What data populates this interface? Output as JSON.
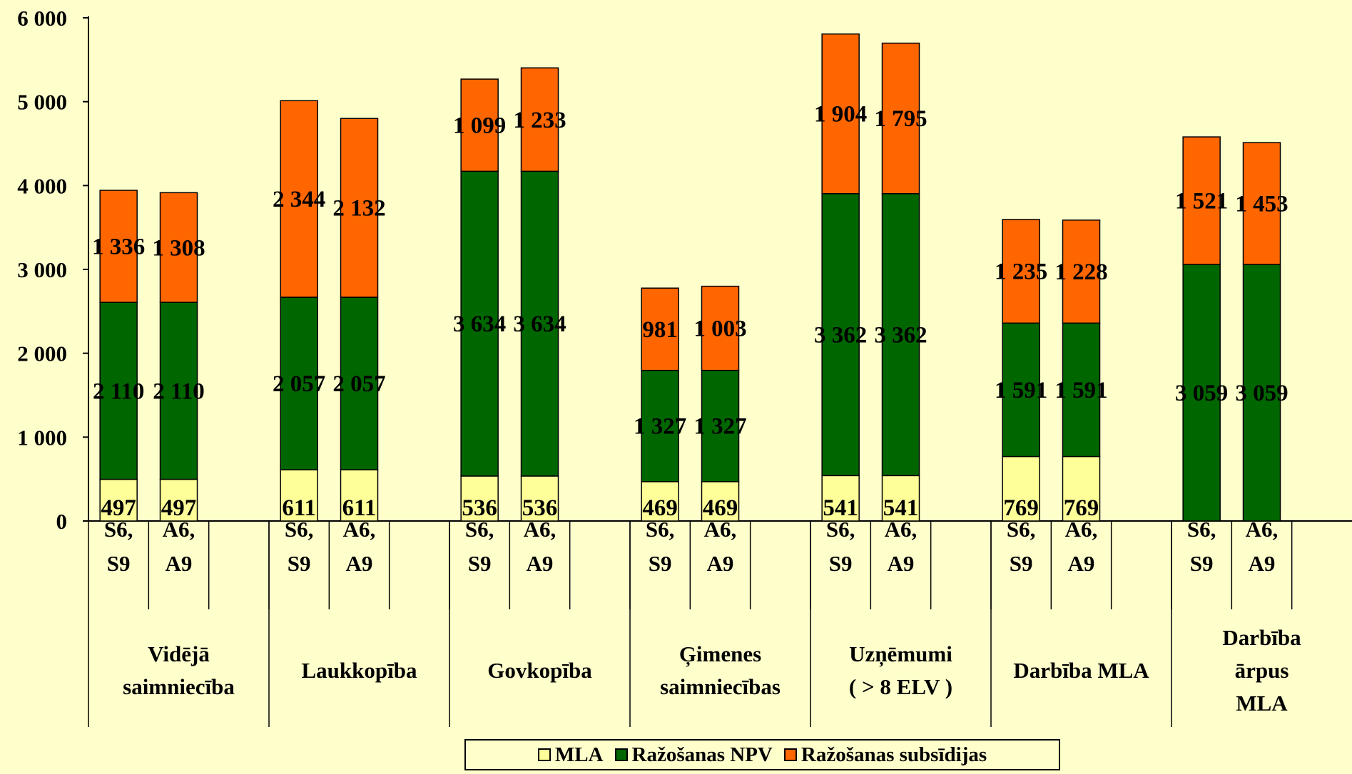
{
  "chart_data": {
    "type": "bar",
    "stacked": true,
    "y_ticks": [
      "0",
      "1 000",
      "2 000",
      "3 000",
      "4 000",
      "5 000",
      "6 000"
    ],
    "ylim": [
      0,
      6000
    ],
    "grid": false,
    "legend_position": "bottom",
    "groups": [
      {
        "label": "Vidējā saimniecība",
        "label_lines": [
          "Vidējā",
          "saimniecība"
        ]
      },
      {
        "label": "Laukkopība",
        "label_lines": [
          "Laukkopība"
        ]
      },
      {
        "label": "Govkopība",
        "label_lines": [
          "Govkopība"
        ]
      },
      {
        "label": "Ģimenes saimniecības",
        "label_lines": [
          "Ģimenes",
          "saimniecības"
        ]
      },
      {
        "label": "Uzņēmumi ( > 8 ELV )",
        "label_lines": [
          "Uzņēmumi",
          "( > 8 ELV )"
        ]
      },
      {
        "label": "Darbība MLA",
        "label_lines": [
          "Darbība MLA"
        ]
      },
      {
        "label": "Darbība ārpus MLA",
        "label_lines": [
          "Darbība",
          "ārpus",
          "MLA"
        ]
      }
    ],
    "categories": [
      {
        "group": 0,
        "label_lines": [
          "S6,",
          "S9"
        ]
      },
      {
        "group": 0,
        "label_lines": [
          "A6,",
          "A9"
        ]
      },
      {
        "group": 1,
        "label_lines": [
          "S6,",
          "S9"
        ]
      },
      {
        "group": 1,
        "label_lines": [
          "A6,",
          "A9"
        ]
      },
      {
        "group": 2,
        "label_lines": [
          "S6,",
          "S9"
        ]
      },
      {
        "group": 2,
        "label_lines": [
          "A6,",
          "A9"
        ]
      },
      {
        "group": 3,
        "label_lines": [
          "S6,",
          "S9"
        ]
      },
      {
        "group": 3,
        "label_lines": [
          "A6,",
          "A9"
        ]
      },
      {
        "group": 4,
        "label_lines": [
          "S6,",
          "S9"
        ]
      },
      {
        "group": 4,
        "label_lines": [
          "A6,",
          "A9"
        ]
      },
      {
        "group": 5,
        "label_lines": [
          "S6,",
          "S9"
        ]
      },
      {
        "group": 5,
        "label_lines": [
          "A6,",
          "A9"
        ]
      },
      {
        "group": 6,
        "label_lines": [
          "S6,",
          "S9"
        ]
      },
      {
        "group": 6,
        "label_lines": [
          "A6,",
          "A9"
        ]
      }
    ],
    "series": [
      {
        "name": "MLA",
        "color": "#FFFF99",
        "values": [
          497,
          497,
          611,
          611,
          536,
          536,
          469,
          469,
          541,
          541,
          769,
          769,
          0,
          0
        ],
        "labels": [
          "497",
          "497",
          "611",
          "611",
          "536",
          "536",
          "469",
          "469",
          "541",
          "541",
          "769",
          "769",
          "",
          ""
        ]
      },
      {
        "name": "Ražošanas NPV",
        "color": "#006600",
        "values": [
          2110,
          2110,
          2057,
          2057,
          3634,
          3634,
          1327,
          1327,
          3362,
          3362,
          1591,
          1591,
          3059,
          3059
        ],
        "labels": [
          "2 110",
          "2 110",
          "2 057",
          "2 057",
          "3 634",
          "3 634",
          "1 327",
          "1 327",
          "3 362",
          "3 362",
          "1 591",
          "1 591",
          "3 059",
          "3 059"
        ]
      },
      {
        "name": "Ražošanas subsīdijas",
        "color": "#FF6600",
        "values": [
          1336,
          1308,
          2344,
          2132,
          1099,
          1233,
          981,
          1003,
          1904,
          1795,
          1235,
          1228,
          1521,
          1453
        ],
        "labels": [
          "1 336",
          "1 308",
          "2 344",
          "2 132",
          "1 099",
          "1 233",
          "981",
          "1 003",
          "1 904",
          "1 795",
          "1 235",
          "1 228",
          "1 521",
          "1 453"
        ]
      }
    ]
  }
}
